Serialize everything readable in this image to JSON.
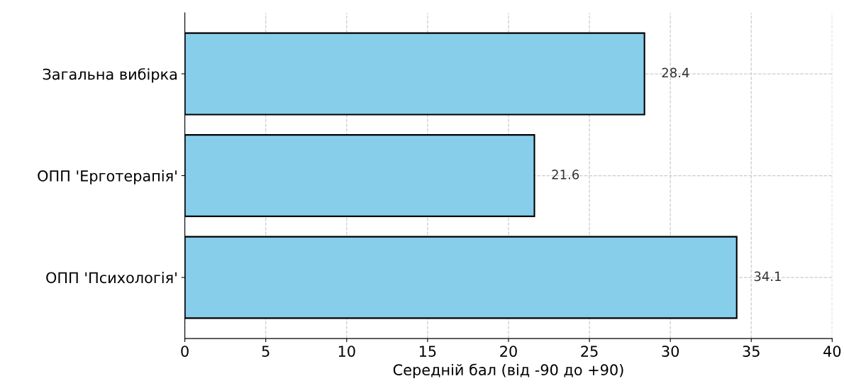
{
  "chart_data": {
    "type": "bar",
    "orientation": "horizontal",
    "categories": [
      "Загальна вибірка",
      "ОПП 'Ерготерапія'",
      "ОПП 'Психологія'"
    ],
    "values": [
      28.4,
      21.6,
      34.1
    ],
    "color": "#87ceeb",
    "xlabel": "Середній бал (від -90 до +90)",
    "xlim": [
      0,
      40
    ],
    "xticks": [
      0,
      5,
      10,
      15,
      20,
      25,
      30,
      35,
      40
    ],
    "grid": true,
    "data_labels": true
  }
}
